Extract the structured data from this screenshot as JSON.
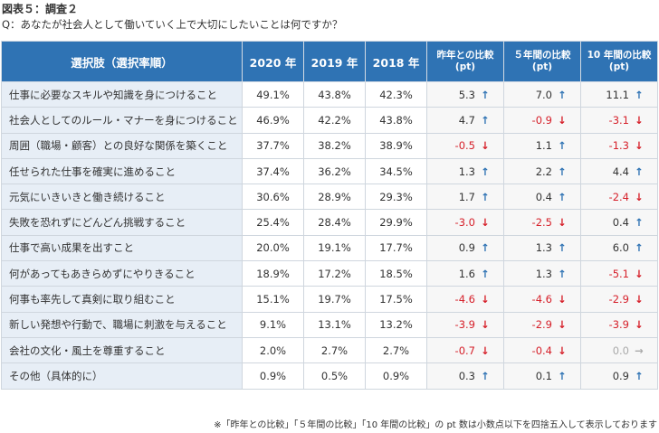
{
  "figure_title": "図表５：調査２",
  "question": "Q：あなたが社会人として働いていく上で大切にしたいことは何ですか？",
  "headers": {
    "choice": "選択肢（選択率順）",
    "y2020": "2020 年",
    "y2019": "2019 年",
    "y2018": "2018 年",
    "diff_prev_line1": "昨年との比較",
    "diff_prev_line2": "(pt)",
    "diff_5y_line1": "５年間の比較",
    "diff_5y_line2": "(pt)",
    "diff_10y_line1": "10 年間の比較",
    "diff_10y_line2": "(pt)"
  },
  "rows": [
    {
      "label": "仕事に必要なスキルや知識を身につけること",
      "y2020": "49.1%",
      "y2019": "43.8%",
      "y2018": "42.3%",
      "d1": "5.3",
      "d1_dir": "up",
      "d5": "7.0",
      "d5_dir": "up",
      "d10": "11.1",
      "d10_dir": "up"
    },
    {
      "label": "社会人としてのルール・マナーを身につけること",
      "y2020": "46.9%",
      "y2019": "42.2%",
      "y2018": "43.8%",
      "d1": "4.7",
      "d1_dir": "up",
      "d5": "-0.9",
      "d5_dir": "down",
      "d10": "-3.1",
      "d10_dir": "down"
    },
    {
      "label": "周囲（職場・顧客）との良好な関係を築くこと",
      "y2020": "37.7%",
      "y2019": "38.2%",
      "y2018": "38.9%",
      "d1": "-0.5",
      "d1_dir": "down",
      "d5": "1.1",
      "d5_dir": "up",
      "d10": "-1.3",
      "d10_dir": "down"
    },
    {
      "label": "任せられた仕事を確実に進めること",
      "y2020": "37.4%",
      "y2019": "36.2%",
      "y2018": "34.5%",
      "d1": "1.3",
      "d1_dir": "up",
      "d5": "2.2",
      "d5_dir": "up",
      "d10": "4.4",
      "d10_dir": "up"
    },
    {
      "label": "元気にいきいきと働き続けること",
      "y2020": "30.6%",
      "y2019": "28.9%",
      "y2018": "29.3%",
      "d1": "1.7",
      "d1_dir": "up",
      "d5": "0.4",
      "d5_dir": "up",
      "d10": "-2.4",
      "d10_dir": "down"
    },
    {
      "label": "失敗を恐れずにどんどん挑戦すること",
      "y2020": "25.4%",
      "y2019": "28.4%",
      "y2018": "29.9%",
      "d1": "-3.0",
      "d1_dir": "down",
      "d5": "-2.5",
      "d5_dir": "down",
      "d10": "0.4",
      "d10_dir": "up"
    },
    {
      "label": "仕事で高い成果を出すこと",
      "y2020": "20.0%",
      "y2019": "19.1%",
      "y2018": "17.7%",
      "d1": "0.9",
      "d1_dir": "up",
      "d5": "1.3",
      "d5_dir": "up",
      "d10": "6.0",
      "d10_dir": "up"
    },
    {
      "label": "何があってもあきらめずにやりきること",
      "y2020": "18.9%",
      "y2019": "17.2%",
      "y2018": "18.5%",
      "d1": "1.6",
      "d1_dir": "up",
      "d5": "1.3",
      "d5_dir": "up",
      "d10": "-5.1",
      "d10_dir": "down"
    },
    {
      "label": "何事も率先して真剣に取り組むこと",
      "y2020": "15.1%",
      "y2019": "19.7%",
      "y2018": "17.5%",
      "d1": "-4.6",
      "d1_dir": "down",
      "d5": "-4.6",
      "d5_dir": "down",
      "d10": "-2.9",
      "d10_dir": "down"
    },
    {
      "label": "新しい発想や行動で、職場に刺激を与えること",
      "y2020": "9.1%",
      "y2019": "13.1%",
      "y2018": "13.2%",
      "d1": "-3.9",
      "d1_dir": "down",
      "d5": "-2.9",
      "d5_dir": "down",
      "d10": "-3.9",
      "d10_dir": "down"
    },
    {
      "label": "会社の文化・風土を尊重すること",
      "y2020": "2.0%",
      "y2019": "2.7%",
      "y2018": "2.7%",
      "d1": "-0.7",
      "d1_dir": "down",
      "d5": "-0.4",
      "d5_dir": "down",
      "d10": "0.0",
      "d10_dir": "flat"
    },
    {
      "label": "その他（具体的に）",
      "y2020": "0.9%",
      "y2019": "0.5%",
      "y2018": "0.9%",
      "d1": "0.3",
      "d1_dir": "up",
      "d5": "0.1",
      "d5_dir": "up",
      "d10": "0.9",
      "d10_dir": "up"
    }
  ],
  "arrow_glyphs": {
    "up": "↑",
    "down": "↓",
    "flat": "→"
  },
  "colors": {
    "header_bg": "#2f73b4",
    "up": "#2f73b4",
    "down": "#d6202a",
    "flat": "#aaaaaa",
    "label_bg": "#e7eef6"
  },
  "footnote": "※「昨年との比較」「５年間の比較」「10 年間の比較」の pt 数は小数点以下を四捨五入して表示しております"
}
